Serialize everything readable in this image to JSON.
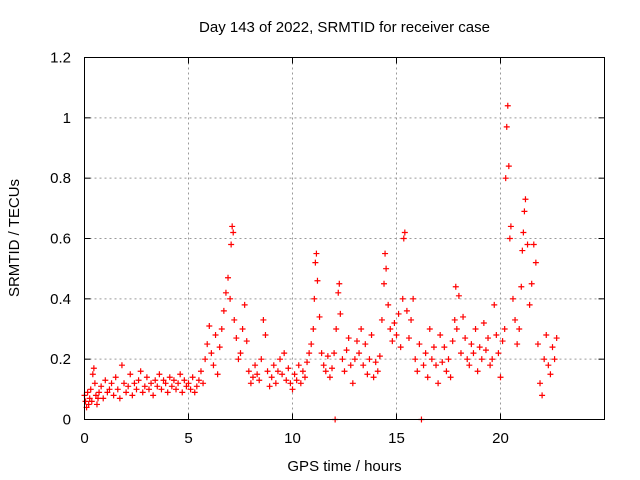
{
  "chart_data": {
    "type": "scatter",
    "title": "Day 143 of 2022, SRMTID for receiver case",
    "xlabel": "GPS time / hours",
    "ylabel": "SRMTID / TECUs",
    "xlim": [
      0,
      25
    ],
    "ylim": [
      0,
      1.2
    ],
    "xticks": [
      0,
      5,
      10,
      15,
      20
    ],
    "xtick_labels": [
      "0",
      "5",
      "10",
      "15",
      "20"
    ],
    "yticks": [
      0,
      0.2,
      0.4,
      0.6,
      0.8,
      1,
      1.2
    ],
    "ytick_labels": [
      "0",
      "0.2",
      "0.4",
      "0.6",
      "0.8",
      "1",
      "1.2"
    ],
    "grid": true,
    "marker": "plus",
    "color": "#ff0000",
    "series": [
      {
        "name": "SRMTID",
        "points": [
          [
            0.0,
            0.08
          ],
          [
            0.05,
            0.06
          ],
          [
            0.1,
            0.04
          ],
          [
            0.15,
            0.09
          ],
          [
            0.2,
            0.05
          ],
          [
            0.25,
            0.07
          ],
          [
            0.3,
            0.1
          ],
          [
            0.35,
            0.06
          ],
          [
            0.4,
            0.15
          ],
          [
            0.45,
            0.17
          ],
          [
            0.5,
            0.12
          ],
          [
            0.55,
            0.08
          ],
          [
            0.6,
            0.05
          ],
          [
            0.65,
            0.07
          ],
          [
            0.7,
            0.09
          ],
          [
            0.8,
            0.11
          ],
          [
            0.9,
            0.07
          ],
          [
            1.0,
            0.13
          ],
          [
            1.1,
            0.09
          ],
          [
            1.2,
            0.1
          ],
          [
            1.3,
            0.12
          ],
          [
            1.4,
            0.08
          ],
          [
            1.5,
            0.14
          ],
          [
            1.6,
            0.1
          ],
          [
            1.7,
            0.07
          ],
          [
            1.8,
            0.18
          ],
          [
            1.9,
            0.12
          ],
          [
            2.0,
            0.09
          ],
          [
            2.1,
            0.11
          ],
          [
            2.2,
            0.15
          ],
          [
            2.3,
            0.08
          ],
          [
            2.4,
            0.12
          ],
          [
            2.5,
            0.1
          ],
          [
            2.6,
            0.13
          ],
          [
            2.7,
            0.16
          ],
          [
            2.8,
            0.09
          ],
          [
            2.9,
            0.11
          ],
          [
            3.0,
            0.14
          ],
          [
            3.1,
            0.1
          ],
          [
            3.2,
            0.12
          ],
          [
            3.3,
            0.08
          ],
          [
            3.4,
            0.13
          ],
          [
            3.5,
            0.11
          ],
          [
            3.6,
            0.15
          ],
          [
            3.7,
            0.1
          ],
          [
            3.8,
            0.13
          ],
          [
            3.9,
            0.12
          ],
          [
            4.0,
            0.09
          ],
          [
            4.1,
            0.14
          ],
          [
            4.2,
            0.11
          ],
          [
            4.3,
            0.13
          ],
          [
            4.4,
            0.1
          ],
          [
            4.5,
            0.12
          ],
          [
            4.6,
            0.15
          ],
          [
            4.7,
            0.09
          ],
          [
            4.8,
            0.13
          ],
          [
            4.9,
            0.11
          ],
          [
            5.0,
            0.12
          ],
          [
            5.1,
            0.1
          ],
          [
            5.2,
            0.14
          ],
          [
            5.3,
            0.09
          ],
          [
            5.4,
            0.11
          ],
          [
            5.5,
            0.13
          ],
          [
            5.6,
            0.16
          ],
          [
            5.7,
            0.12
          ],
          [
            5.8,
            0.2
          ],
          [
            5.9,
            0.25
          ],
          [
            6.0,
            0.31
          ],
          [
            6.1,
            0.22
          ],
          [
            6.2,
            0.18
          ],
          [
            6.3,
            0.28
          ],
          [
            6.4,
            0.15
          ],
          [
            6.5,
            0.24
          ],
          [
            6.6,
            0.3
          ],
          [
            6.7,
            0.36
          ],
          [
            6.8,
            0.42
          ],
          [
            6.9,
            0.47
          ],
          [
            7.0,
            0.4
          ],
          [
            7.05,
            0.58
          ],
          [
            7.1,
            0.64
          ],
          [
            7.15,
            0.62
          ],
          [
            7.2,
            0.33
          ],
          [
            7.3,
            0.27
          ],
          [
            7.4,
            0.2
          ],
          [
            7.5,
            0.22
          ],
          [
            7.6,
            0.3
          ],
          [
            7.7,
            0.38
          ],
          [
            7.8,
            0.26
          ],
          [
            7.9,
            0.16
          ],
          [
            8.0,
            0.12
          ],
          [
            8.1,
            0.14
          ],
          [
            8.2,
            0.18
          ],
          [
            8.3,
            0.15
          ],
          [
            8.4,
            0.13
          ],
          [
            8.5,
            0.2
          ],
          [
            8.6,
            0.33
          ],
          [
            8.7,
            0.28
          ],
          [
            8.8,
            0.16
          ],
          [
            8.9,
            0.11
          ],
          [
            9.0,
            0.14
          ],
          [
            9.1,
            0.18
          ],
          [
            9.2,
            0.12
          ],
          [
            9.3,
            0.16
          ],
          [
            9.4,
            0.2
          ],
          [
            9.5,
            0.15
          ],
          [
            9.6,
            0.22
          ],
          [
            9.7,
            0.13
          ],
          [
            9.8,
            0.17
          ],
          [
            9.9,
            0.12
          ],
          [
            10.0,
            0.1
          ],
          [
            10.1,
            0.15
          ],
          [
            10.2,
            0.13
          ],
          [
            10.3,
            0.18
          ],
          [
            10.4,
            0.12
          ],
          [
            10.5,
            0.16
          ],
          [
            10.6,
            0.14
          ],
          [
            10.7,
            0.19
          ],
          [
            10.8,
            0.22
          ],
          [
            10.9,
            0.25
          ],
          [
            11.0,
            0.3
          ],
          [
            11.05,
            0.4
          ],
          [
            11.1,
            0.52
          ],
          [
            11.15,
            0.55
          ],
          [
            11.2,
            0.46
          ],
          [
            11.3,
            0.34
          ],
          [
            11.4,
            0.22
          ],
          [
            11.5,
            0.18
          ],
          [
            11.6,
            0.16
          ],
          [
            11.7,
            0.21
          ],
          [
            11.8,
            0.14
          ],
          [
            11.9,
            0.17
          ],
          [
            12.0,
            0.22
          ],
          [
            12.05,
            0.0
          ],
          [
            12.1,
            0.3
          ],
          [
            12.2,
            0.42
          ],
          [
            12.25,
            0.45
          ],
          [
            12.3,
            0.35
          ],
          [
            12.4,
            0.2
          ],
          [
            12.5,
            0.16
          ],
          [
            12.6,
            0.23
          ],
          [
            12.7,
            0.27
          ],
          [
            12.8,
            0.18
          ],
          [
            12.9,
            0.12
          ],
          [
            13.0,
            0.2
          ],
          [
            13.1,
            0.26
          ],
          [
            13.2,
            0.22
          ],
          [
            13.3,
            0.3
          ],
          [
            13.4,
            0.18
          ],
          [
            13.5,
            0.25
          ],
          [
            13.6,
            0.15
          ],
          [
            13.7,
            0.2
          ],
          [
            13.8,
            0.28
          ],
          [
            13.9,
            0.14
          ],
          [
            14.0,
            0.19
          ],
          [
            14.1,
            0.16
          ],
          [
            14.2,
            0.21
          ],
          [
            14.3,
            0.33
          ],
          [
            14.4,
            0.45
          ],
          [
            14.45,
            0.55
          ],
          [
            14.5,
            0.5
          ],
          [
            14.6,
            0.38
          ],
          [
            14.7,
            0.3
          ],
          [
            14.8,
            0.26
          ],
          [
            14.9,
            0.32
          ],
          [
            15.0,
            0.28
          ],
          [
            15.1,
            0.35
          ],
          [
            15.2,
            0.24
          ],
          [
            15.3,
            0.4
          ],
          [
            15.35,
            0.6
          ],
          [
            15.4,
            0.62
          ],
          [
            15.5,
            0.36
          ],
          [
            15.6,
            0.27
          ],
          [
            15.7,
            0.33
          ],
          [
            15.8,
            0.4
          ],
          [
            15.9,
            0.2
          ],
          [
            16.0,
            0.16
          ],
          [
            16.1,
            0.25
          ],
          [
            16.2,
            0.0
          ],
          [
            16.3,
            0.18
          ],
          [
            16.4,
            0.22
          ],
          [
            16.5,
            0.14
          ],
          [
            16.6,
            0.3
          ],
          [
            16.7,
            0.2
          ],
          [
            16.8,
            0.24
          ],
          [
            16.9,
            0.18
          ],
          [
            17.0,
            0.12
          ],
          [
            17.1,
            0.28
          ],
          [
            17.2,
            0.19
          ],
          [
            17.3,
            0.24
          ],
          [
            17.4,
            0.16
          ],
          [
            17.5,
            0.2
          ],
          [
            17.6,
            0.14
          ],
          [
            17.7,
            0.26
          ],
          [
            17.8,
            0.33
          ],
          [
            17.85,
            0.44
          ],
          [
            17.9,
            0.3
          ],
          [
            18.0,
            0.41
          ],
          [
            18.1,
            0.22
          ],
          [
            18.2,
            0.34
          ],
          [
            18.3,
            0.27
          ],
          [
            18.4,
            0.2
          ],
          [
            18.5,
            0.18
          ],
          [
            18.6,
            0.25
          ],
          [
            18.7,
            0.22
          ],
          [
            18.8,
            0.3
          ],
          [
            18.9,
            0.16
          ],
          [
            19.0,
            0.24
          ],
          [
            19.1,
            0.2
          ],
          [
            19.2,
            0.32
          ],
          [
            19.3,
            0.23
          ],
          [
            19.4,
            0.27
          ],
          [
            19.5,
            0.18
          ],
          [
            19.6,
            0.2
          ],
          [
            19.7,
            0.38
          ],
          [
            19.8,
            0.28
          ],
          [
            19.9,
            0.22
          ],
          [
            20.0,
            0.14
          ],
          [
            20.1,
            0.26
          ],
          [
            20.2,
            0.3
          ],
          [
            20.25,
            0.8
          ],
          [
            20.3,
            0.97
          ],
          [
            20.35,
            1.04
          ],
          [
            20.4,
            0.84
          ],
          [
            20.45,
            0.6
          ],
          [
            20.5,
            0.64
          ],
          [
            20.6,
            0.4
          ],
          [
            20.7,
            0.33
          ],
          [
            20.8,
            0.25
          ],
          [
            20.9,
            0.3
          ],
          [
            21.0,
            0.44
          ],
          [
            21.05,
            0.56
          ],
          [
            21.1,
            0.62
          ],
          [
            21.15,
            0.69
          ],
          [
            21.2,
            0.73
          ],
          [
            21.3,
            0.58
          ],
          [
            21.4,
            0.38
          ],
          [
            21.5,
            0.45
          ],
          [
            21.6,
            0.58
          ],
          [
            21.7,
            0.52
          ],
          [
            21.8,
            0.25
          ],
          [
            21.9,
            0.12
          ],
          [
            22.0,
            0.08
          ],
          [
            22.1,
            0.2
          ],
          [
            22.2,
            0.28
          ],
          [
            22.3,
            0.18
          ],
          [
            22.4,
            0.15
          ],
          [
            22.5,
            0.24
          ],
          [
            22.6,
            0.2
          ],
          [
            22.7,
            0.27
          ]
        ]
      }
    ]
  }
}
